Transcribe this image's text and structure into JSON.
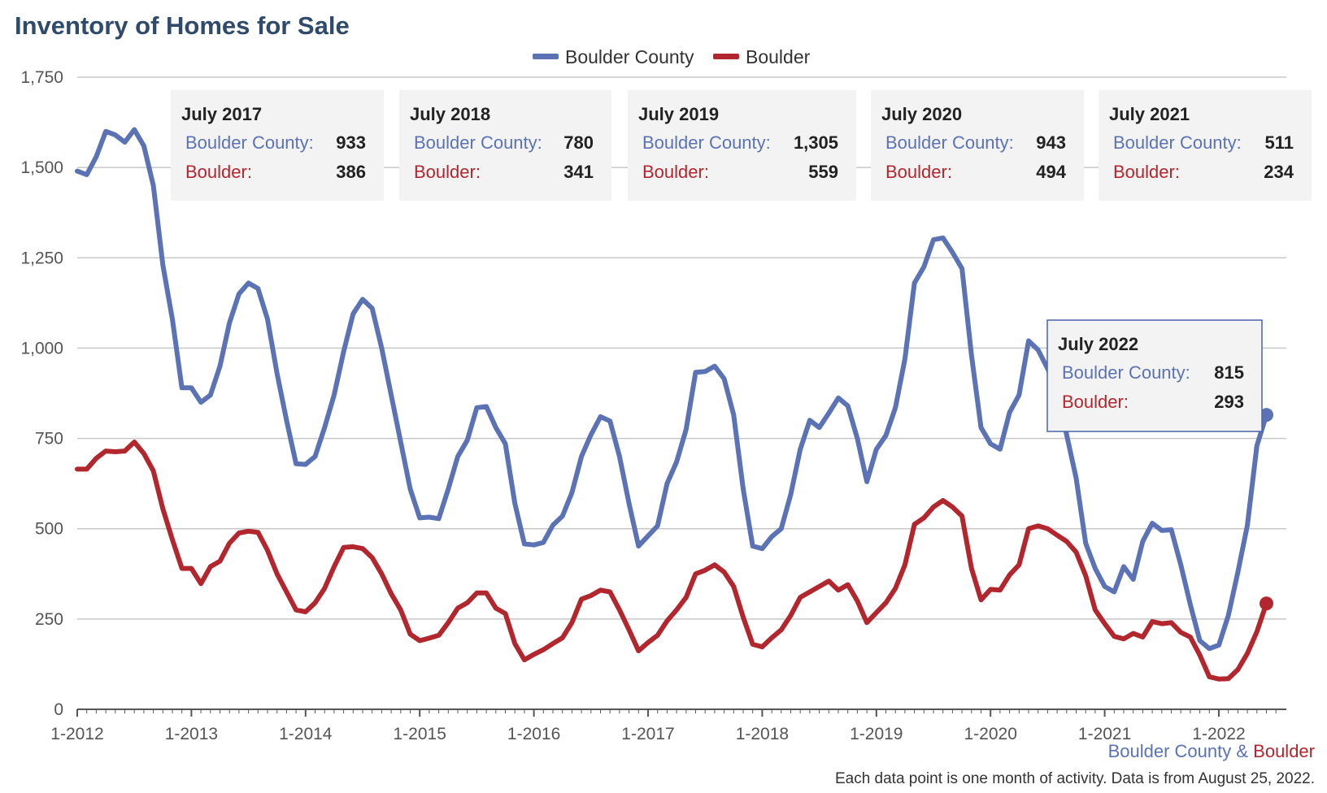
{
  "colors": {
    "county": "#5b73b5",
    "city": "#b2262e",
    "title": "#2f4a6b",
    "tooltip_bg": "#f3f3f3",
    "tooltip_active_border": "#4a63a8"
  },
  "chart_data": {
    "type": "line",
    "title": "Inventory of Homes for Sale",
    "xlabel": "",
    "ylabel": "",
    "ylim": [
      0,
      1750
    ],
    "yticks": [
      0,
      250,
      500,
      750,
      1000,
      1250,
      1500,
      1750
    ],
    "ytick_labels": [
      "0",
      "250",
      "500",
      "750",
      "1,000",
      "1,250",
      "1,500",
      "1,750"
    ],
    "x_start": "1-2012",
    "x_interval": "monthly",
    "xtick_labels": [
      "1-2012",
      "1-2013",
      "1-2014",
      "1-2015",
      "1-2016",
      "1-2017",
      "1-2018",
      "1-2019",
      "1-2020",
      "1-2021",
      "1-2022"
    ],
    "legend_position": "top-center",
    "grid": true,
    "series": [
      {
        "name": "Boulder County",
        "color": "#5b73b5",
        "values": [
          1490,
          1480,
          1530,
          1600,
          1590,
          1570,
          1605,
          1560,
          1450,
          1230,
          1080,
          890,
          890,
          850,
          870,
          950,
          1070,
          1150,
          1180,
          1165,
          1080,
          930,
          800,
          680,
          678,
          700,
          780,
          870,
          990,
          1095,
          1135,
          1110,
          1000,
          870,
          740,
          610,
          530,
          532,
          528,
          610,
          700,
          745,
          835,
          838,
          780,
          735,
          570,
          458,
          455,
          462,
          510,
          535,
          600,
          700,
          760,
          810,
          798,
          700,
          570,
          452,
          480,
          508,
          625,
          685,
          775,
          933,
          935,
          950,
          915,
          815,
          610,
          452,
          445,
          478,
          500,
          595,
          720,
          800,
          780,
          820,
          862,
          840,
          750,
          630,
          720,
          758,
          835,
          970,
          1180,
          1225,
          1300,
          1305,
          1265,
          1220,
          980,
          780,
          735,
          720,
          822,
          870,
          1020,
          995,
          943,
          890,
          760,
          640,
          460,
          390,
          340,
          325,
          395,
          360,
          465,
          515,
          495,
          497,
          400,
          290,
          190,
          168,
          178,
          260,
          380,
          510,
          730,
          815
        ]
      },
      {
        "name": "Boulder",
        "color": "#b2262e",
        "values": [
          665,
          665,
          695,
          715,
          713,
          715,
          740,
          708,
          660,
          555,
          470,
          390,
          390,
          348,
          395,
          410,
          460,
          488,
          493,
          490,
          440,
          375,
          325,
          275,
          270,
          295,
          335,
          395,
          448,
          450,
          445,
          420,
          375,
          320,
          275,
          208,
          190,
          197,
          205,
          240,
          280,
          295,
          322,
          322,
          280,
          265,
          182,
          137,
          152,
          165,
          182,
          198,
          240,
          305,
          315,
          330,
          325,
          275,
          220,
          162,
          185,
          205,
          245,
          275,
          310,
          375,
          385,
          400,
          380,
          340,
          255,
          180,
          173,
          198,
          220,
          260,
          310,
          325,
          340,
          355,
          330,
          345,
          300,
          240,
          268,
          295,
          335,
          400,
          512,
          530,
          560,
          578,
          560,
          535,
          390,
          303,
          332,
          330,
          372,
          400,
          500,
          508,
          500,
          482,
          465,
          435,
          370,
          275,
          237,
          202,
          195,
          210,
          200,
          243,
          237,
          240,
          213,
          200,
          150,
          90,
          84,
          85,
          110,
          155,
          215,
          293
        ]
      }
    ],
    "tooltips": [
      {
        "header": "July 2017",
        "county_label": "Boulder County:",
        "county_value": "933",
        "city_label": "Boulder:",
        "city_value": "386"
      },
      {
        "header": "July 2018",
        "county_label": "Boulder County:",
        "county_value": "780",
        "city_label": "Boulder:",
        "city_value": "341"
      },
      {
        "header": "July 2019",
        "county_label": "Boulder County:",
        "county_value": "1,305",
        "city_label": "Boulder:",
        "city_value": "559"
      },
      {
        "header": "July 2020",
        "county_label": "Boulder County:",
        "county_value": "943",
        "city_label": "Boulder:",
        "city_value": "494"
      },
      {
        "header": "July 2021",
        "county_label": "Boulder County:",
        "county_value": "511",
        "city_label": "Boulder:",
        "city_value": "234"
      },
      {
        "header": "July 2022",
        "county_label": "Boulder County:",
        "county_value": "815",
        "city_label": "Boulder:",
        "city_value": "293",
        "active": true
      }
    ],
    "endpoint_markers": [
      "Boulder County",
      "Boulder"
    ]
  },
  "legend": {
    "county_label": "Boulder County",
    "city_label": "Boulder"
  },
  "source": {
    "county": "Boulder County",
    "amp": " & ",
    "city": "Boulder"
  },
  "footer_note": "Each data point is one month of activity. Data is from August 25, 2022."
}
